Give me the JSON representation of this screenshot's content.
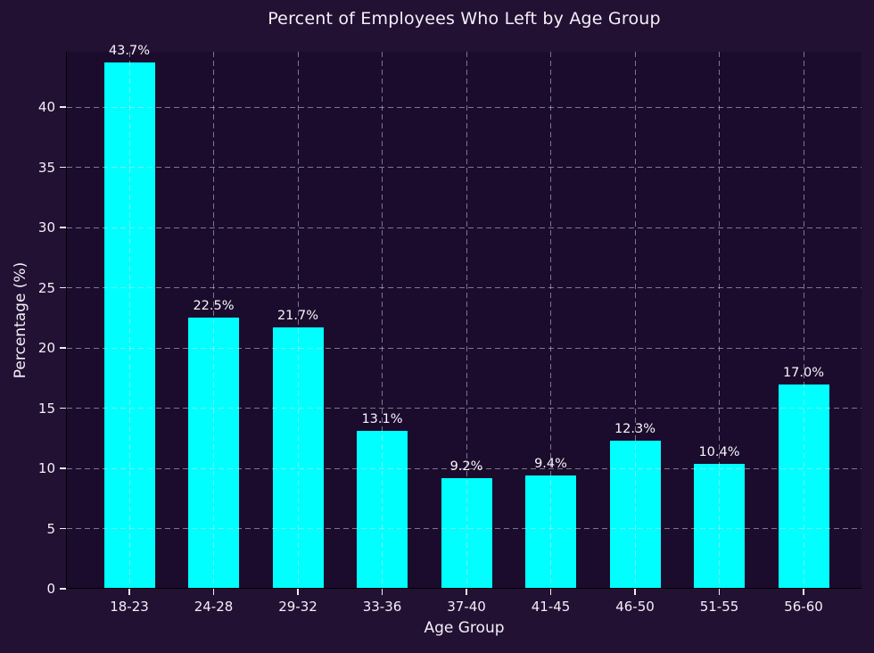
{
  "chart_data": {
    "type": "bar",
    "title": "Percent of Employees Who Left by Age Group",
    "xlabel": "Age Group",
    "ylabel": "Percentage (%)",
    "categories": [
      "18-23",
      "24-28",
      "29-32",
      "33-36",
      "37-40",
      "41-45",
      "46-50",
      "51-55",
      "56-60"
    ],
    "values": [
      43.7,
      22.5,
      21.7,
      13.1,
      9.2,
      9.4,
      12.3,
      10.4,
      17.0
    ],
    "bar_labels": [
      "43.7%",
      "22.5%",
      "21.7%",
      "13.1%",
      "9.2%",
      "9.4%",
      "12.3%",
      "10.4%",
      "17.0%"
    ],
    "yticks": [
      0,
      5,
      10,
      15,
      20,
      25,
      30,
      35,
      40
    ],
    "ylim": [
      0,
      44.6
    ],
    "grid": true,
    "legend": "none",
    "colors": {
      "figure_background": "#231134",
      "axes_background": "#1b0c2d",
      "bar": "#00ffff",
      "grid": "rgba(225,222,232,0.50)",
      "text": "#f3eff7",
      "spine": "#000000"
    }
  }
}
